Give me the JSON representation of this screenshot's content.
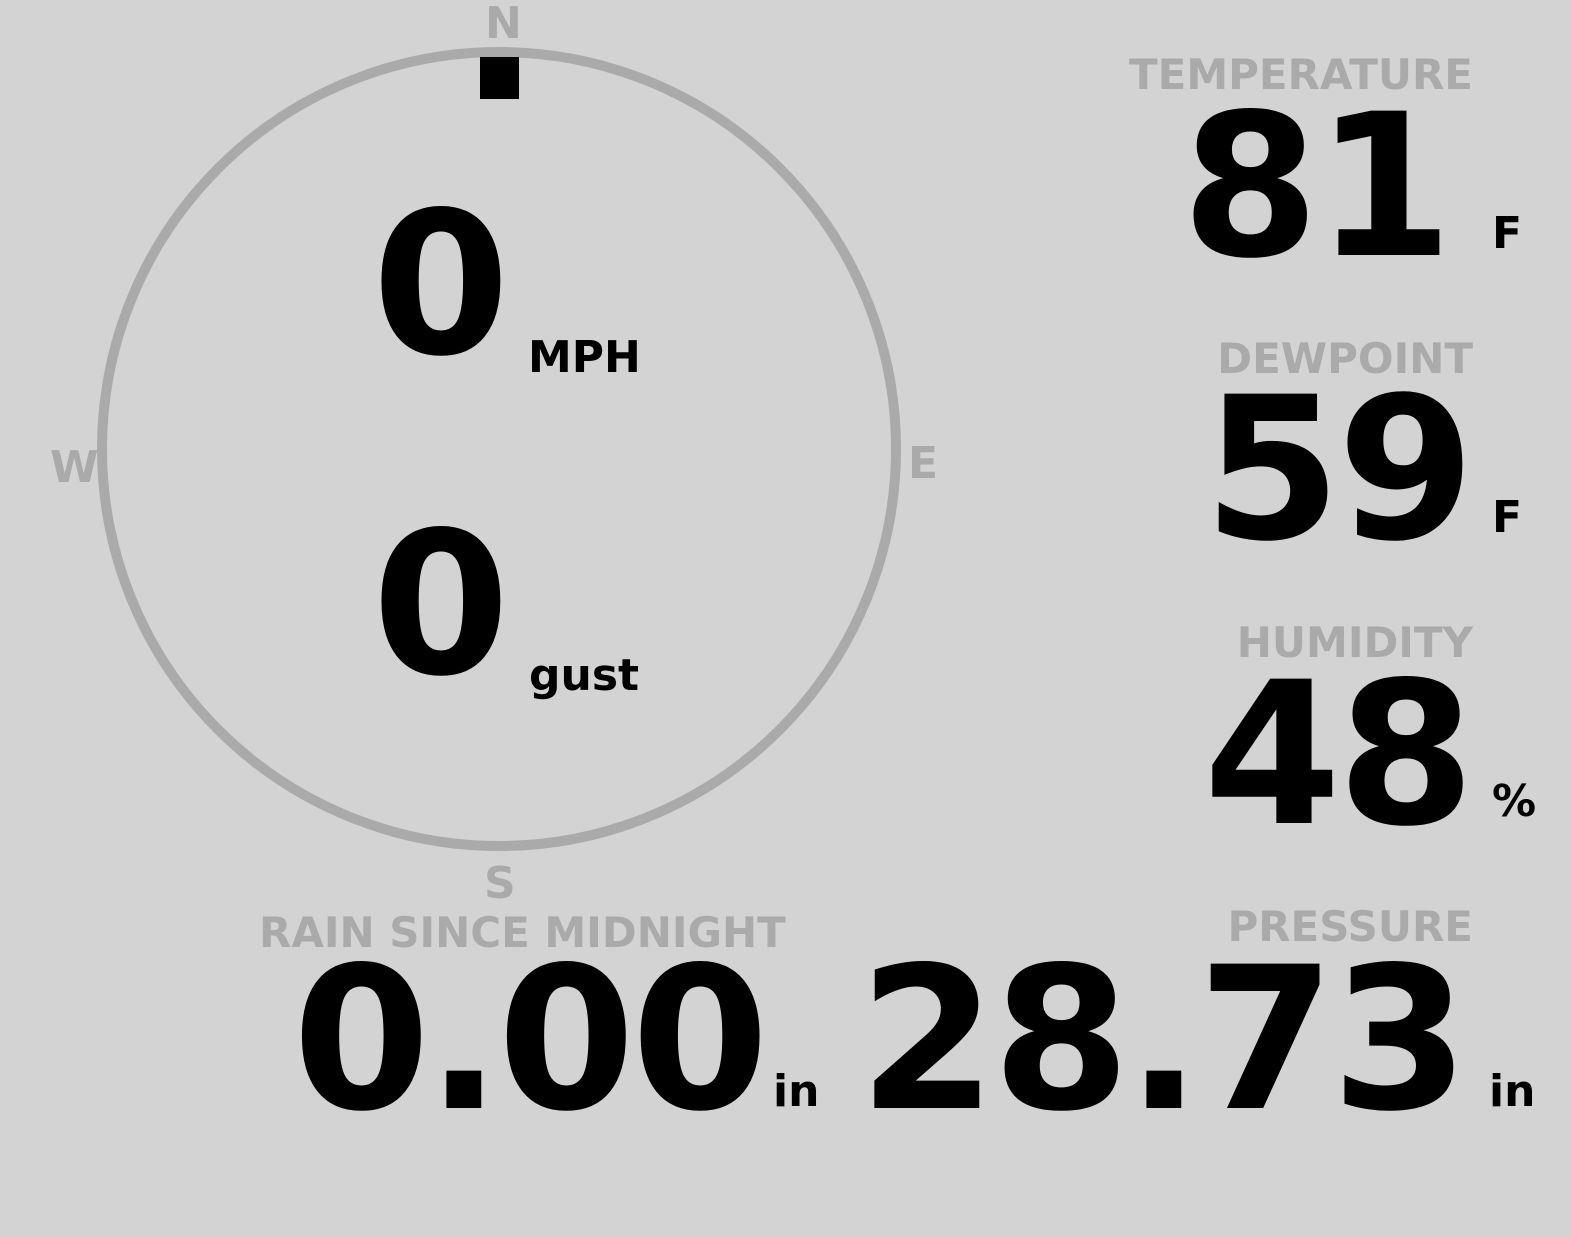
{
  "colors": {
    "background": "#d3d3d3",
    "muted": "#aaaaaa",
    "value": "#000000"
  },
  "wind": {
    "compass": {
      "north": "N",
      "east": "E",
      "south": "S",
      "west": "W"
    },
    "direction_deg": 0,
    "speed": "0",
    "speed_unit": "MPH",
    "gust": "0",
    "gust_unit": "gust"
  },
  "rain": {
    "label": "RAIN SINCE MIDNIGHT",
    "value": "0.00",
    "unit": "in"
  },
  "temperature": {
    "label": "TEMPERATURE",
    "value": "81",
    "unit": "F"
  },
  "dewpoint": {
    "label": "DEWPOINT",
    "value": "59",
    "unit": "F"
  },
  "humidity": {
    "label": "HUMIDITY",
    "value": "48",
    "unit": "%"
  },
  "pressure": {
    "label": "PRESSURE",
    "value": "28.73",
    "unit": "in"
  }
}
